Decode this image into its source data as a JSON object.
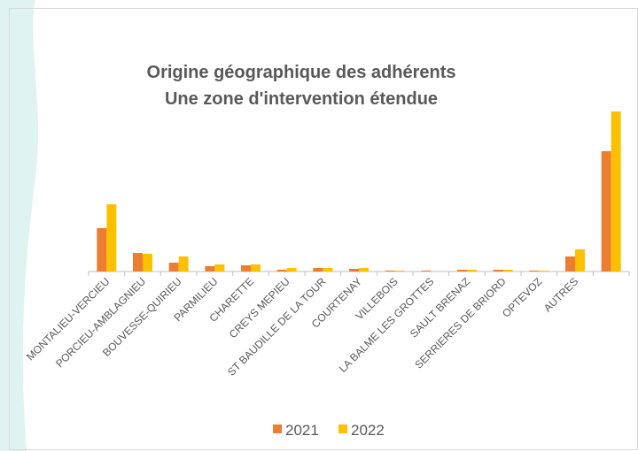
{
  "chart_data": {
    "type": "bar",
    "title": "Origine géographique des adhérents",
    "subtitle": "Une zone d'intervention étendue",
    "categories": [
      "MONTALIEU-VERCIEU",
      "PORCIEU-AMBLAGNIEU",
      "BOUVESSE-QUIRIEU",
      "PARMILIEU",
      "CHARETTE",
      "CREYS MEPIEU",
      "ST BAUDILLE DE LA TOUR",
      "COURTENAY",
      "VILLEBOIS",
      "LA BALME LES GROTTES",
      "SAULT BRENAZ",
      "SERRIERES DE BRIORD",
      "OPTEVOZ",
      "AUTRES",
      null
    ],
    "series": [
      {
        "name": "2021",
        "color": "#ed7d31",
        "values": [
          49,
          21,
          10,
          6,
          7,
          2,
          4,
          3,
          1,
          1,
          2,
          2,
          1,
          17,
          136
        ]
      },
      {
        "name": "2022",
        "color": "#ffc000",
        "values": [
          76,
          20,
          17,
          8,
          8,
          4,
          4,
          4,
          1,
          0,
          2,
          2,
          1,
          25,
          181
        ]
      }
    ],
    "legend": "bottom"
  }
}
